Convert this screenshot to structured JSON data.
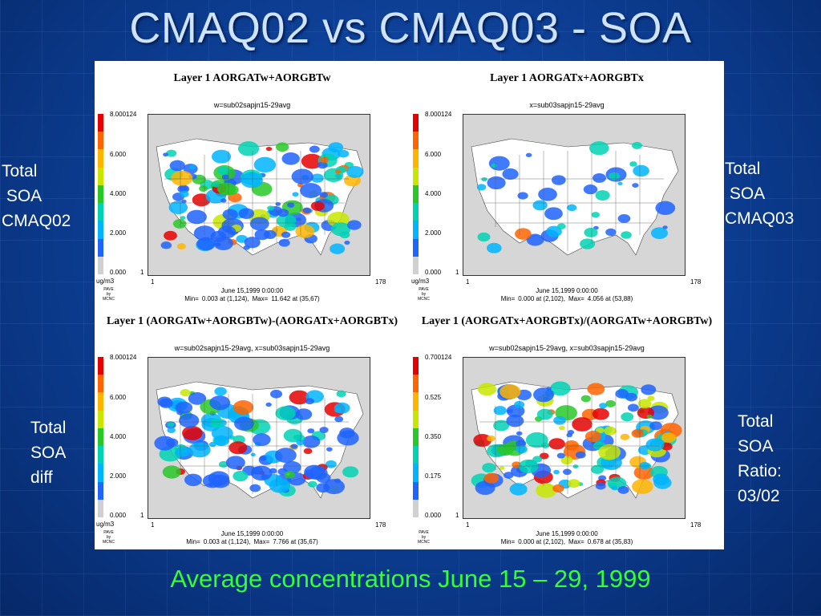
{
  "slide": {
    "title": "CMAQ02 vs CMAQ03 - SOA",
    "caption": "Average concentrations June 15 – 29, 1999"
  },
  "labels": {
    "top_left": "Total\n SOA\nCMAQ02",
    "top_right": "Total\n SOA\nCMAQ03",
    "bottom_left": "Total\nSOA\ndiff",
    "bottom_right": "Total\nSOA\nRatio:\n03/02"
  },
  "colors": {
    "background": "#0b3a8c",
    "title": "#cfe3ff",
    "caption": "#33ff33",
    "scale": [
      "#d0d0d0",
      "#1e64ff",
      "#00b4ff",
      "#00d2b4",
      "#28c828",
      "#c8e600",
      "#ffb400",
      "#ff6400",
      "#e60000"
    ]
  },
  "panels": [
    {
      "layer_title": "Layer 1  AORGATw+AORGBTw",
      "subtitle": "w=sub02sapjn15-29avg",
      "scale_max": "8.000124",
      "ticks": [
        "6.000",
        "4.000",
        "2.000",
        "0.000"
      ],
      "unit": "ug/m3",
      "grid_start": "1",
      "grid_end": "178",
      "date": "June 15,1999 0:00:00",
      "min_label": "Min=",
      "min_value": "0.003 at (1,124),",
      "max_label": "Max=",
      "max_value": "11.642 at (35,67)",
      "pave": "PAVE\nby\nMCNC"
    },
    {
      "layer_title": "Layer 1  AORGATx+AORGBTx",
      "subtitle": "x=sub03sapjn15-29avg",
      "scale_max": "8.000124",
      "ticks": [
        "6.000",
        "4.000",
        "2.000",
        "0.000"
      ],
      "unit": "ug/m3",
      "grid_start": "1",
      "grid_end": "178",
      "date": "June 15,1999 0:00:00",
      "min_label": "Min=",
      "min_value": "0.000 at (2,102),",
      "max_label": "Max=",
      "max_value": "4.056 at (53,88)",
      "pave": "PAVE\nby\nMCNC"
    },
    {
      "layer_title": "Layer 1  (AORGATw+AORGBTw)-(AORGATx+AORGBTx)",
      "subtitle": "w=sub02sapjn15-29avg, x=sub03sapjn15-29avg",
      "scale_max": "8.000124",
      "ticks": [
        "6.000",
        "4.000",
        "2.000",
        "0.000"
      ],
      "unit": "ug/m3",
      "grid_start": "1",
      "grid_end": "178",
      "date": "June 15,1999 0:00:00",
      "min_label": "Min=",
      "min_value": "0.003 at (1,124),",
      "max_label": "Max=",
      "max_value": "7.766 at (35,67)",
      "pave": "PAVE\nby\nMCNC"
    },
    {
      "layer_title": "Layer 1  (AORGATx+AORGBTx)/(AORGATw+AORGBTw)",
      "subtitle": "w=sub02sapjn15-29avg, x=sub03sapjn15-29avg",
      "scale_max": "0.700124",
      "ticks": [
        "0.525",
        "0.350",
        "0.175",
        "0.000"
      ],
      "unit": "",
      "grid_start": "1",
      "grid_end": "178",
      "date": "June 15,1999 0:00:00",
      "min_label": "Min=",
      "min_value": "0.000 at (2,102),",
      "max_label": "Max=",
      "max_value": "0.678 at (35,83)",
      "pave": "PAVE\nby\nMCNC"
    }
  ]
}
